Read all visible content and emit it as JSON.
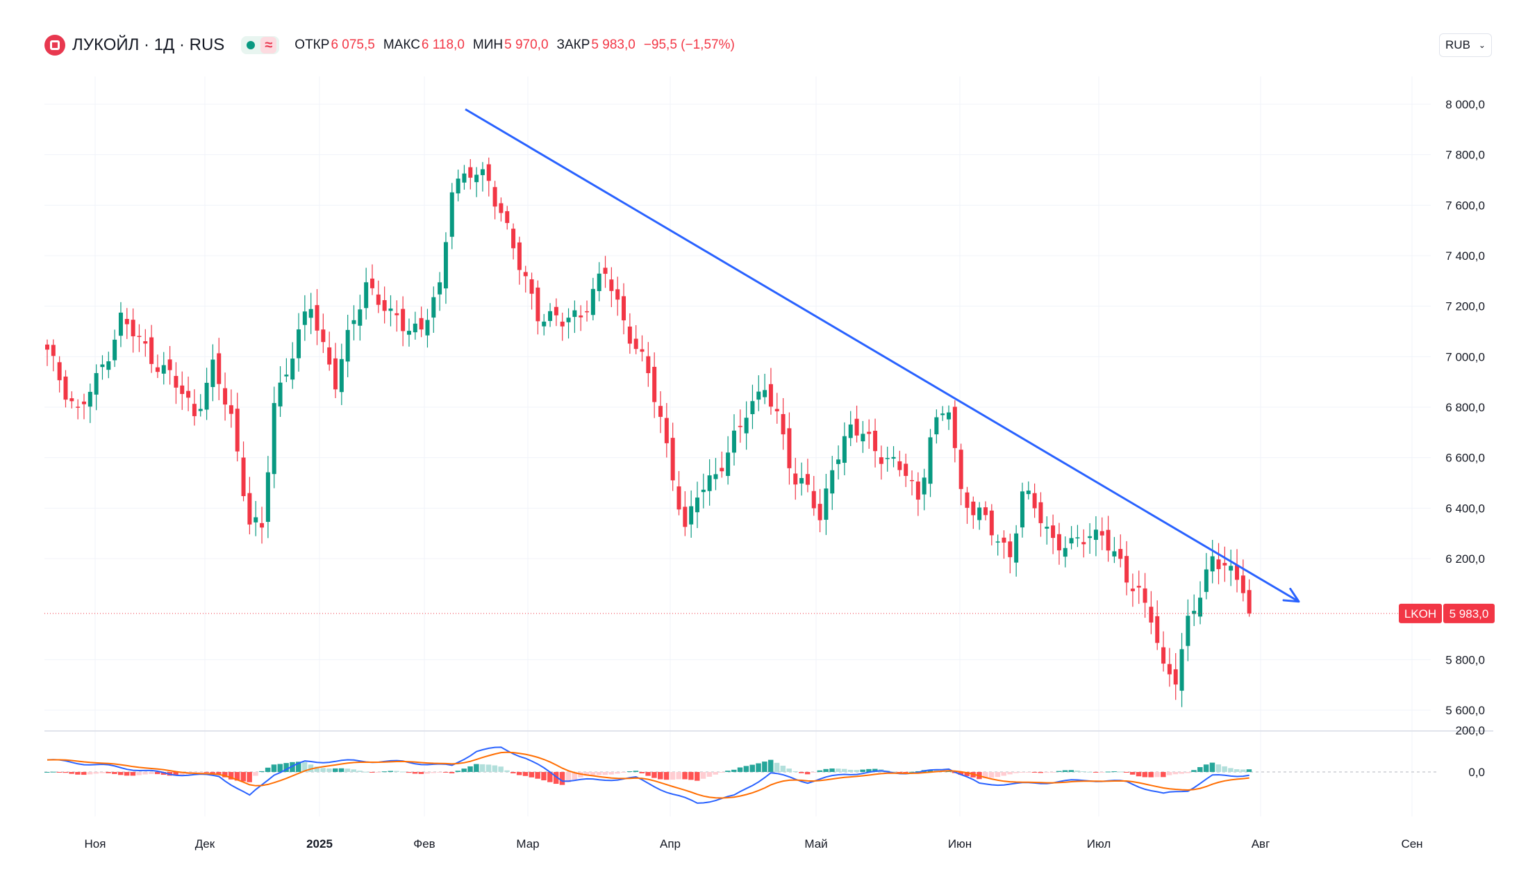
{
  "header": {
    "title": "ЛУКОЙЛ · 1Д · RUS",
    "logo_icon": "lukoil-logo-icon",
    "live_icon": "market-open-dot-icon",
    "delay_glyph": "≈",
    "open_label": "ОТКР",
    "open_value": "6 075,5",
    "high_label": "МАКС",
    "high_value": "6 118,0",
    "low_label": "МИН",
    "low_value": "5 970,0",
    "close_label": "ЗАКР",
    "close_value": "5 983,0",
    "change_value": "−95,5 (−1,57%)"
  },
  "currency_selector": {
    "label": "RUB",
    "chevron_icon": "chevron-down-icon"
  },
  "price_tag": {
    "ticker": "LKOH",
    "price": "5 983,0"
  },
  "colors": {
    "up": "#089981",
    "down": "#f23645",
    "trendline": "#2962ff",
    "macd": "#2962ff",
    "signal": "#ff6d00",
    "hist_up_strong": "#26a69a",
    "hist_up_weak": "#b2dfdb",
    "hist_down_strong": "#ff5252",
    "hist_down_weak": "#ffcdd2"
  },
  "chart_data": {
    "type": "candlestick",
    "instrument": "ЛУКОЙЛ (LKOH)",
    "timeframe": "1Д",
    "price_axis": {
      "ticks": [
        "8 000,0",
        "7 800,0",
        "7 600,0",
        "7 400,0",
        "7 200,0",
        "7 000,0",
        "6 800,0",
        "6 600,0",
        "6 400,0",
        "6 200,0",
        "5 800,0",
        "5 600,0"
      ],
      "ylim": [
        5560,
        8160
      ]
    },
    "time_axis": {
      "labels": [
        "Ноя",
        "Дек",
        "2025",
        "Фев",
        "Мар",
        "Апр",
        "Май",
        "Июн",
        "Июл",
        "Авг",
        "Сен"
      ]
    },
    "indicator_axis": {
      "ticks": [
        "200,0",
        "0,0"
      ]
    },
    "current_price": 5983,
    "series": [
      {
        "name": "price_anchors",
        "points": [
          [
            0,
            7010
          ],
          [
            5,
            6780
          ],
          [
            8,
            6900
          ],
          [
            12,
            7150
          ],
          [
            15,
            7060
          ],
          [
            20,
            6920
          ],
          [
            24,
            6780
          ],
          [
            27,
            6950
          ],
          [
            30,
            6760
          ],
          [
            33,
            6350
          ],
          [
            35,
            6300
          ],
          [
            37,
            6820
          ],
          [
            40,
            7020
          ],
          [
            43,
            7200
          ],
          [
            47,
            6900
          ],
          [
            52,
            7300
          ],
          [
            56,
            7150
          ],
          [
            61,
            7110
          ],
          [
            64,
            7260
          ],
          [
            66,
            7690
          ],
          [
            69,
            7720
          ],
          [
            72,
            7700
          ],
          [
            74,
            7580
          ],
          [
            77,
            7350
          ],
          [
            80,
            7180
          ],
          [
            84,
            7130
          ],
          [
            87,
            7180
          ],
          [
            91,
            7330
          ],
          [
            94,
            7150
          ],
          [
            98,
            6920
          ],
          [
            100,
            6760
          ],
          [
            102,
            6540
          ],
          [
            104,
            6290
          ],
          [
            106,
            6460
          ],
          [
            108,
            6520
          ],
          [
            111,
            6600
          ],
          [
            114,
            6790
          ],
          [
            117,
            6890
          ],
          [
            118,
            6800
          ],
          [
            120,
            6680
          ],
          [
            122,
            6510
          ],
          [
            124,
            6500
          ],
          [
            126,
            6320
          ],
          [
            128,
            6580
          ],
          [
            131,
            6720
          ],
          [
            134,
            6660
          ],
          [
            137,
            6600
          ],
          [
            140,
            6530
          ],
          [
            142,
            6430
          ],
          [
            144,
            6700
          ],
          [
            146,
            6760
          ],
          [
            147,
            6790
          ],
          [
            149,
            6460
          ],
          [
            152,
            6380
          ],
          [
            154,
            6300
          ],
          [
            157,
            6220
          ],
          [
            159,
            6460
          ],
          [
            162,
            6360
          ],
          [
            164,
            6280
          ],
          [
            167,
            6240
          ],
          [
            170,
            6300
          ],
          [
            172,
            6310
          ],
          [
            174,
            6200
          ],
          [
            176,
            6120
          ],
          [
            178,
            6080
          ],
          [
            180,
            5970
          ],
          [
            182,
            5740
          ],
          [
            184,
            5740
          ],
          [
            186,
            5960
          ],
          [
            188,
            6050
          ],
          [
            190,
            6190
          ],
          [
            192,
            6200
          ],
          [
            194,
            6110
          ],
          [
            195,
            6075
          ],
          [
            196,
            5983
          ]
        ]
      },
      {
        "name": "macd_anchors",
        "points": [
          [
            0,
            60
          ],
          [
            10,
            30
          ],
          [
            20,
            -10
          ],
          [
            28,
            -20
          ],
          [
            33,
            -120
          ],
          [
            37,
            -10
          ],
          [
            42,
            50
          ],
          [
            50,
            55
          ],
          [
            58,
            50
          ],
          [
            66,
            30
          ],
          [
            70,
            105
          ],
          [
            74,
            120
          ],
          [
            78,
            70
          ],
          [
            84,
            -40
          ],
          [
            90,
            -40
          ],
          [
            96,
            -30
          ],
          [
            102,
            -110
          ],
          [
            106,
            -155
          ],
          [
            112,
            -120
          ],
          [
            118,
            -5
          ],
          [
            124,
            -50
          ],
          [
            130,
            -10
          ],
          [
            136,
            0
          ],
          [
            142,
            -5
          ],
          [
            147,
            20
          ],
          [
            152,
            -60
          ],
          [
            158,
            -60
          ],
          [
            164,
            -50
          ],
          [
            170,
            -40
          ],
          [
            176,
            -50
          ],
          [
            182,
            -110
          ],
          [
            186,
            -90
          ],
          [
            190,
            -20
          ],
          [
            196,
            -15
          ]
        ]
      },
      {
        "name": "trendline",
        "points": [
          [
            "2025-02-13",
            7980
          ],
          [
            "2025-07-31",
            6030
          ]
        ]
      }
    ],
    "annotations": [
      "LKOH 5 983,0"
    ]
  }
}
